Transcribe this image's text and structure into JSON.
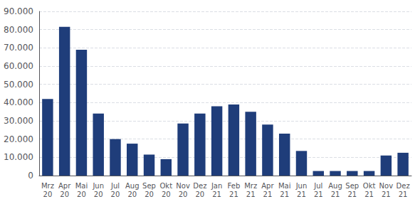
{
  "chart_data": {
    "type": "bar",
    "categories": [
      "Mrz\n20",
      "Apr\n20",
      "Mai\n20",
      "Jun\n20",
      "Jul\n20",
      "Aug\n20",
      "Sep\n20",
      "Okt\n20",
      "Nov\n20",
      "Dez\n20",
      "Jan\n21",
      "Feb\n21",
      "Mrz\n21",
      "Apr\n21",
      "Mai\n21",
      "Jun\n21",
      "Jul\n21",
      "Aug\n21",
      "Sep\n21",
      "Okt\n21",
      "Nov\n21",
      "Dez\n21"
    ],
    "values": [
      42000,
      81500,
      69000,
      34000,
      20000,
      17500,
      11500,
      9000,
      28500,
      34000,
      38000,
      39000,
      35000,
      28000,
      23000,
      13500,
      2500,
      2500,
      2500,
      2500,
      11000,
      12500
    ],
    "color": "#1f3d7a",
    "ylim": [
      0,
      90000
    ],
    "yticks": [
      0,
      {
        "value": 10000,
        "label": "10.000"
      },
      {
        "value": 20000,
        "label": "20.000"
      },
      {
        "value": 30000,
        "label": "30.000"
      },
      {
        "value": 40000,
        "label": "40.000"
      },
      {
        "value": 50000,
        "label": "50.000"
      },
      {
        "value": 60000,
        "label": "60.000"
      },
      {
        "value": 70000,
        "label": "70.000"
      },
      {
        "value": 80000,
        "label": "80.000"
      },
      {
        "value": 90000,
        "label": "90.000"
      }
    ],
    "grid": true
  }
}
